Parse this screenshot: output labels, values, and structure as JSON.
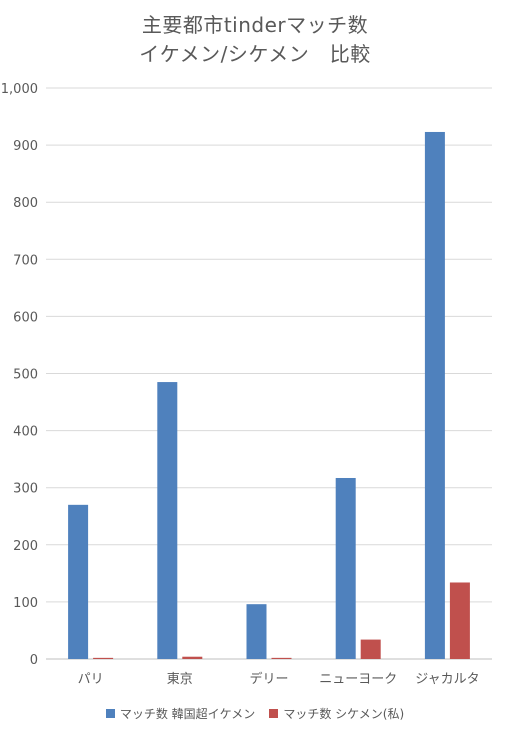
{
  "chart_data": {
    "type": "bar",
    "title_lines": [
      "主要都市tinderマッチ数",
      "イケメン/シケメン　比較"
    ],
    "categories": [
      "パリ",
      "東京",
      "デリー",
      "ニューヨーク",
      "ジャカルタ"
    ],
    "series": [
      {
        "name": "マッチ数 韓国超イケメン",
        "color": "#4F81BD",
        "values": [
          270,
          485,
          96,
          317,
          923
        ]
      },
      {
        "name": "マッチ数 シケメン(私)",
        "color": "#C0504D",
        "values": [
          2,
          4,
          2,
          34,
          134
        ]
      }
    ],
    "ylim": [
      0,
      1000
    ],
    "y_ticks": [
      0,
      100,
      200,
      300,
      400,
      500,
      600,
      700,
      800,
      900,
      1000
    ],
    "y_tick_labels": [
      "0",
      "100",
      "200",
      "300",
      "400",
      "500",
      "600",
      "700",
      "800",
      "900",
      "1,000"
    ],
    "grid": true,
    "legend_position": "bottom",
    "xlabel": "",
    "ylabel": ""
  }
}
